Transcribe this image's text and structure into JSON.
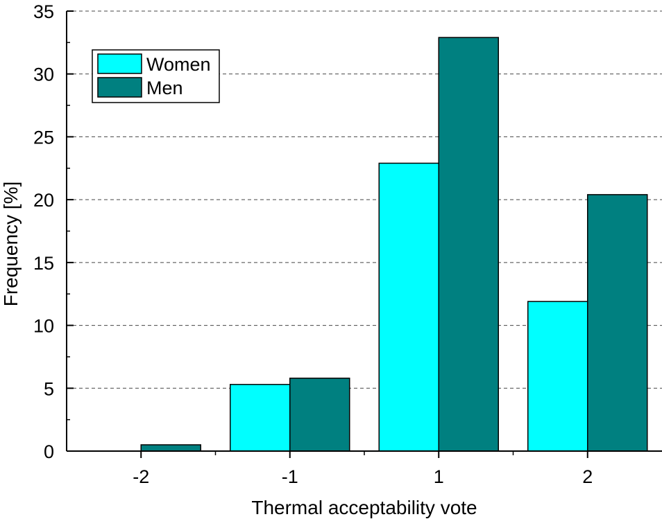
{
  "chart_data": {
    "type": "bar",
    "title": "",
    "xlabel": "Thermal acceptability vote",
    "ylabel": "Frequency [%]",
    "categories": [
      "-2",
      "-1",
      "1",
      "2"
    ],
    "series": [
      {
        "name": "Women",
        "values": [
          0,
          5.3,
          22.9,
          11.9
        ],
        "color": "#00FFFF"
      },
      {
        "name": "Men",
        "values": [
          0.5,
          5.8,
          32.9,
          20.4
        ],
        "color": "#008080"
      }
    ],
    "ylim": [
      0,
      35
    ],
    "yticks": [
      "0",
      "5",
      "10",
      "15",
      "20",
      "25",
      "30",
      "35"
    ],
    "grid": "horizontal dashed",
    "legend_position": "top-left"
  }
}
